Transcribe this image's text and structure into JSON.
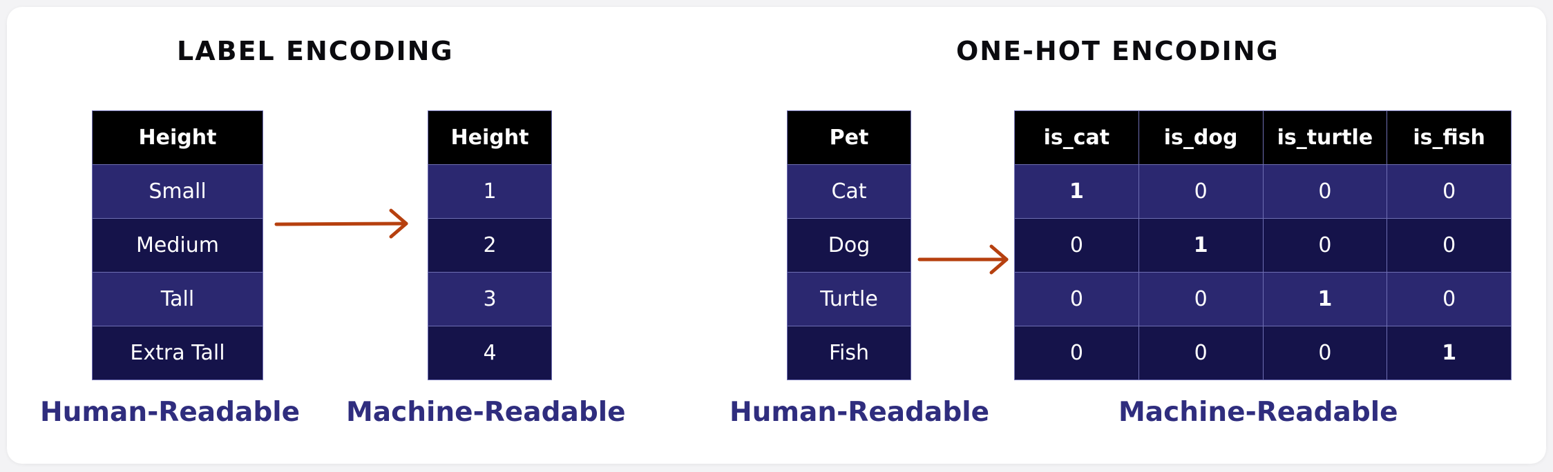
{
  "label_encoding": {
    "title": "LABEL ENCODING",
    "human_table": {
      "header": "Height",
      "rows": [
        "Small",
        "Medium",
        "Tall",
        "Extra Tall"
      ]
    },
    "machine_table": {
      "header": "Height",
      "rows": [
        "1",
        "2",
        "3",
        "4"
      ]
    },
    "human_caption": "Human-Readable",
    "machine_caption": "Machine-Readable"
  },
  "one_hot_encoding": {
    "title": "ONE-HOT ENCODING",
    "human_table": {
      "header": "Pet",
      "rows": [
        "Cat",
        "Dog",
        "Turtle",
        "Fish"
      ]
    },
    "machine_table": {
      "headers": [
        "is_cat",
        "is_dog",
        "is_turtle",
        "is_fish"
      ],
      "rows": [
        [
          "1",
          "0",
          "0",
          "0"
        ],
        [
          "0",
          "1",
          "0",
          "0"
        ],
        [
          "0",
          "0",
          "1",
          "0"
        ],
        [
          "0",
          "0",
          "0",
          "1"
        ]
      ]
    },
    "human_caption": "Human-Readable",
    "machine_caption": "Machine-Readable"
  },
  "colors": {
    "header_bg": "#000000",
    "row_light": "#2b2870",
    "row_dark": "#15134a",
    "arrow": "#b6400f",
    "caption": "#2f2d7e"
  }
}
